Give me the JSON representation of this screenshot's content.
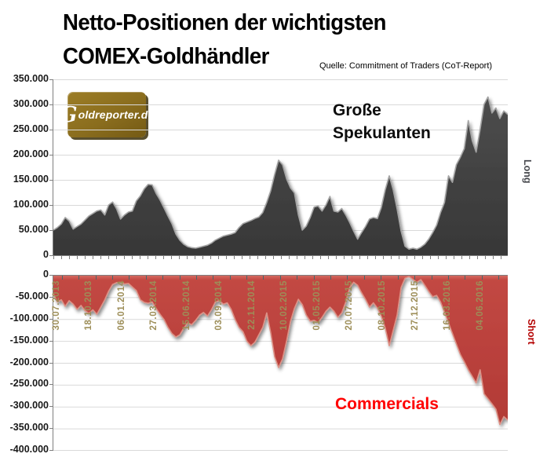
{
  "header": {
    "title_line1": "Netto-Positionen der wichtigsten",
    "title_line2": "COMEX-Goldhändler",
    "source_note": "Quelle: Commitment of Traders (CoT-Report)"
  },
  "logo": {
    "initial": "G",
    "rest": "oldreporter.de"
  },
  "top_chart": {
    "series_label_line1": "Große",
    "series_label_line2": "Spekulanten",
    "side_label": "Long",
    "y_tick_labels": [
      "350.000",
      "300.000",
      "250.000",
      "200.000",
      "150.000",
      "100.000",
      "50.000",
      "0"
    ]
  },
  "bottom_chart": {
    "series_label": "Commercials",
    "side_label": "Short",
    "y_tick_labels": [
      "0",
      "-50.000",
      "-100.000",
      "-150.000",
      "-200.000",
      "-250.000",
      "-300.000",
      "-350.000",
      "-400.000"
    ],
    "x_tick_labels": [
      "30.07.2013",
      "18.10.2013",
      "06.01.2014",
      "27.03.2014",
      "15.06.2014",
      "03.09.2014",
      "22.11.2014",
      "10.02.2015",
      "01.05.2015",
      "20.07.2015",
      "08.10.2015",
      "27.12.2015",
      "16.03.2016",
      "04.06.2016"
    ]
  },
  "colors": {
    "speculators_fill": "#3f3f3f",
    "speculators_edge": "#a3a3a3",
    "commercials_fill": "#bc413d",
    "commercials_edge": "#dc9186",
    "grid": "#d9d9d9",
    "axis": "#7f7f7f",
    "date_labels": "#9d8e58",
    "commercials_text": "#ff0000",
    "short_text": "#b40000",
    "long_text": "#45474c",
    "logo_background": "#8a6d1e"
  },
  "chart_data": {
    "type": "area",
    "title": "Netto-Positionen der wichtigsten COMEX-Goldhändler",
    "source": "Quelle: Commitment of Traders (CoT-Report)",
    "grid": true,
    "x_tick_labels": [
      "30.07.2013",
      "18.10.2013",
      "06.01.2014",
      "27.03.2014",
      "15.06.2014",
      "03.09.2014",
      "22.11.2014",
      "10.02.2015",
      "01.05.2015",
      "20.07.2015",
      "08.10.2015",
      "27.12.2015",
      "16.03.2016",
      "04.06.2016"
    ],
    "panels": [
      {
        "name": "Große Spekulanten",
        "side_label": "Long",
        "position": "top",
        "ylim": [
          0,
          350000
        ],
        "y_tick_step": 50000,
        "values": [
          50000,
          55000,
          62000,
          75000,
          68000,
          52000,
          57000,
          62000,
          70000,
          78000,
          83000,
          88000,
          90000,
          80000,
          100000,
          106000,
          92000,
          72000,
          80000,
          86000,
          88000,
          108000,
          118000,
          132000,
          141000,
          140000,
          123000,
          110000,
          94000,
          78000,
          63000,
          42000,
          30000,
          22000,
          17000,
          15000,
          14000,
          16000,
          18000,
          20000,
          24000,
          30000,
          34000,
          38000,
          40000,
          42000,
          45000,
          55000,
          63000,
          66000,
          69000,
          73000,
          76000,
          85000,
          105000,
          128000,
          160000,
          189000,
          180000,
          152000,
          134000,
          124000,
          80000,
          50000,
          58000,
          75000,
          96000,
          98000,
          88000,
          100000,
          117000,
          88000,
          86000,
          93000,
          80000,
          65000,
          48000,
          32000,
          45000,
          57000,
          72000,
          75000,
          73000,
          95000,
          130000,
          158000,
          130000,
          92000,
          48000,
          18000,
          12000,
          14000,
          12000,
          16000,
          22000,
          32000,
          45000,
          60000,
          85000,
          105000,
          158000,
          145000,
          180000,
          195000,
          212000,
          268000,
          228000,
          205000,
          250000,
          300000,
          315000,
          283000,
          293000,
          272000,
          287000,
          280000
        ]
      },
      {
        "name": "Commercials",
        "side_label": "Short",
        "position": "bottom",
        "ylim": [
          -400000,
          0
        ],
        "y_tick_step": 50000,
        "values": [
          -42000,
          -60000,
          -55000,
          -70000,
          -57000,
          -65000,
          -77000,
          -68000,
          -80000,
          -86000,
          -78000,
          -88000,
          -72000,
          -55000,
          -35000,
          -20000,
          -16000,
          -15000,
          -19000,
          -18000,
          -26000,
          -34000,
          -55000,
          -61000,
          -63000,
          -60000,
          -75000,
          -88000,
          -100000,
          -118000,
          -132000,
          -140000,
          -135000,
          -120000,
          -108000,
          -112000,
          -102000,
          -90000,
          -84000,
          -92000,
          -78000,
          -60000,
          -57000,
          -65000,
          -62000,
          -77000,
          -100000,
          -118000,
          -128000,
          -150000,
          -160000,
          -152000,
          -135000,
          -118000,
          -85000,
          -130000,
          -185000,
          -210000,
          -190000,
          -150000,
          -105000,
          -75000,
          -54000,
          -66000,
          -90000,
          -104000,
          -102000,
          -107000,
          -95000,
          -81000,
          -72000,
          -81000,
          -95000,
          -85000,
          -60000,
          -27000,
          -15000,
          -22000,
          -39000,
          -54000,
          -72000,
          -62000,
          -74000,
          -93000,
          -120000,
          -160000,
          -125000,
          -90000,
          -27000,
          -6000,
          -2000,
          -9000,
          -15000,
          -9000,
          -22000,
          -36000,
          -48000,
          -45000,
          -60000,
          -84000,
          -108000,
          -132000,
          -156000,
          -180000,
          -197000,
          -215000,
          -230000,
          -245000,
          -215000,
          -270000,
          -281000,
          -293000,
          -305000,
          -340000,
          -322000,
          -330000
        ]
      }
    ]
  }
}
